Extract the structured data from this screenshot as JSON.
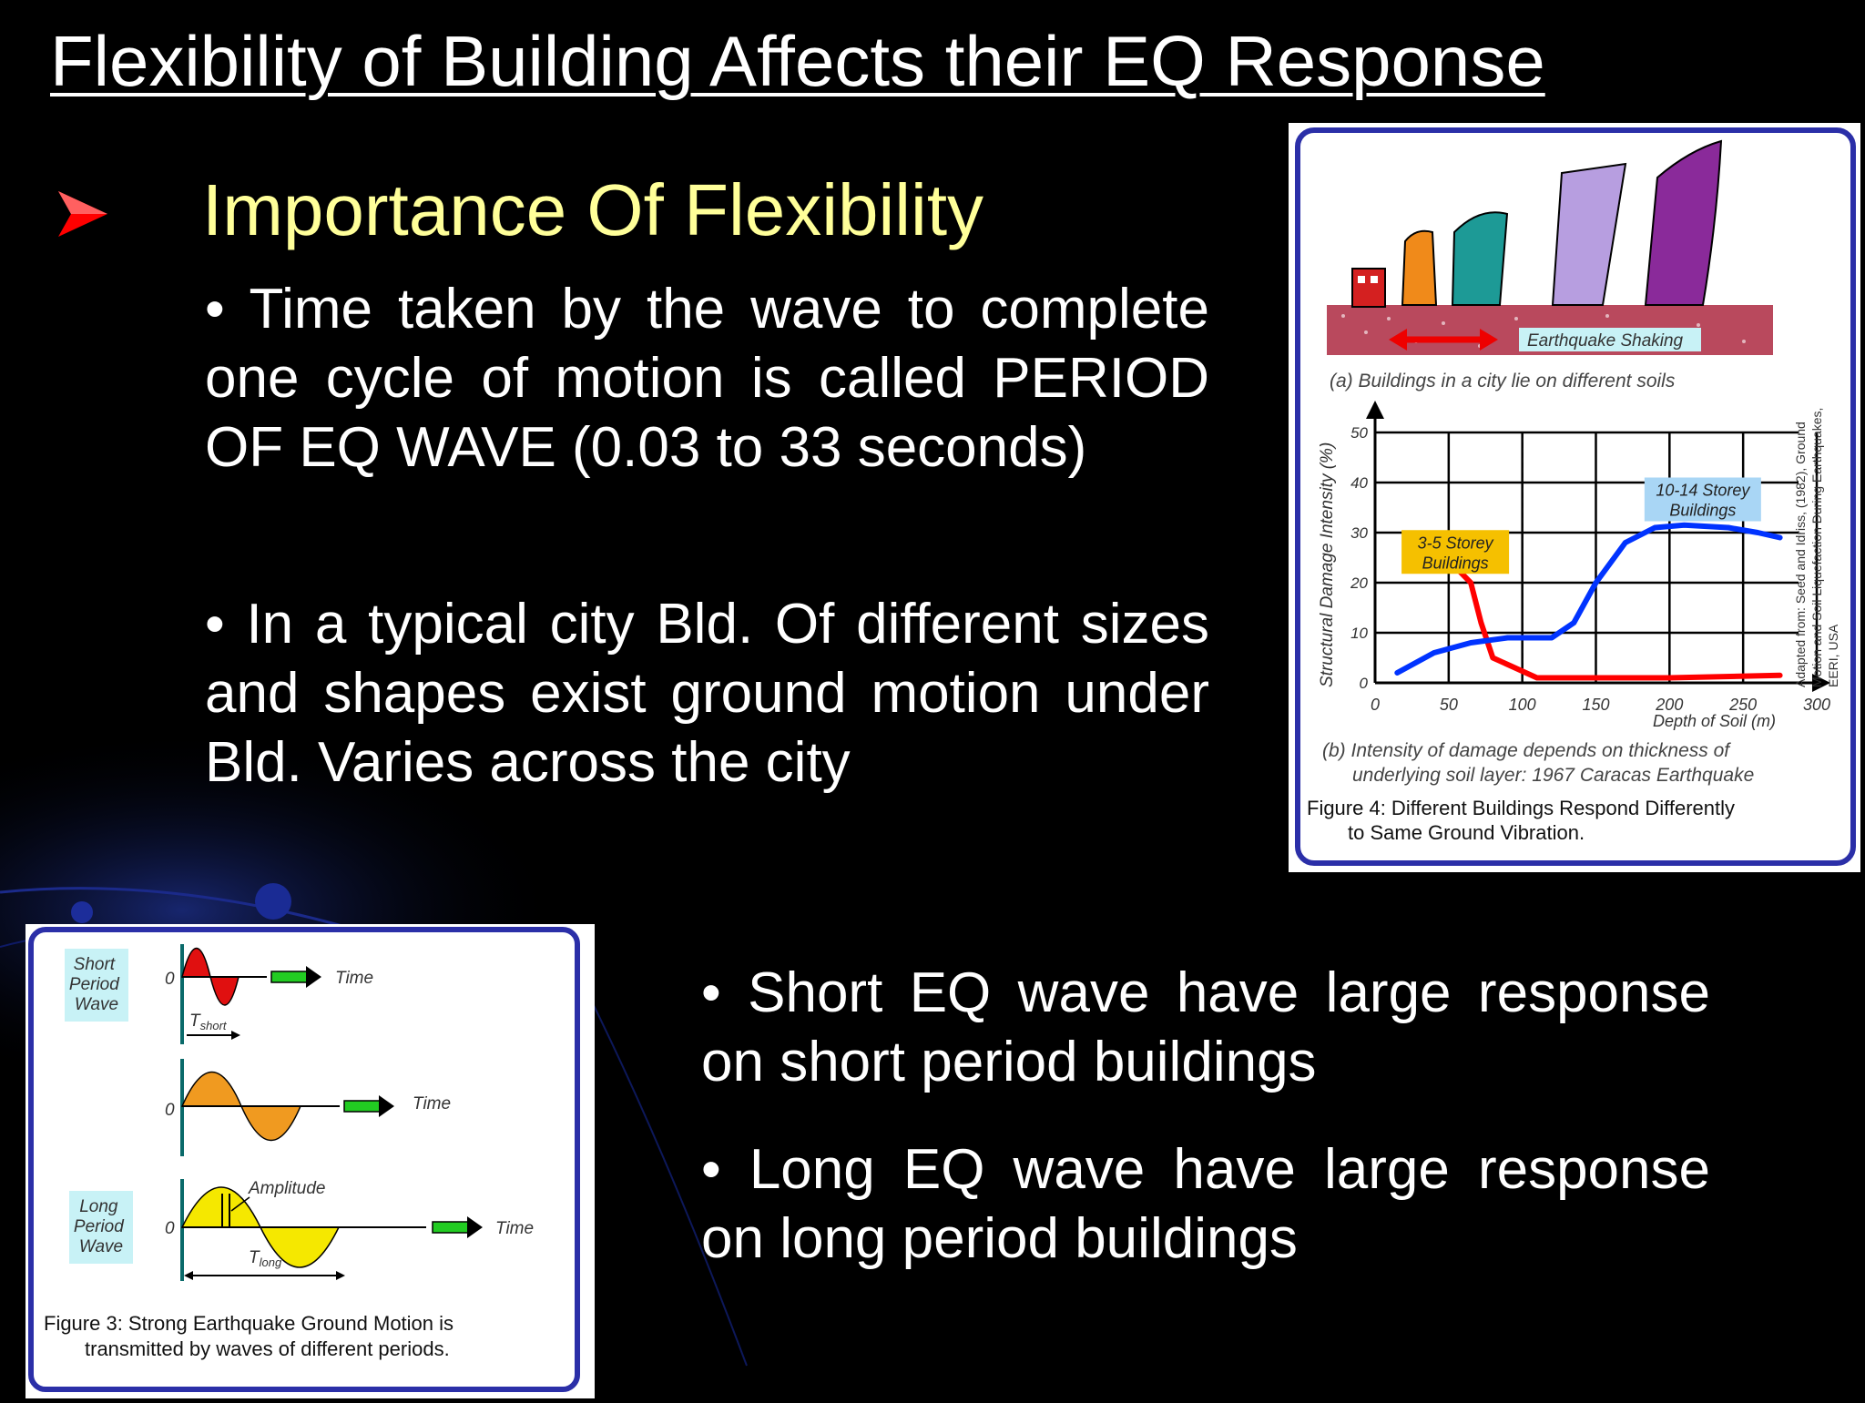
{
  "slide": {
    "title": "Flexibility of Building Affects their EQ Response",
    "heading": "Importance Of Flexibility",
    "bullets": [
      "• Time taken by the wave to complete one cycle of motion is called PERIOD OF EQ WAVE (0.03 to 33 seconds)",
      "• In a typical city Bld. Of different sizes and shapes exist ground motion under Bld. Varies across the city",
      "• Short EQ wave have large response on short period buildings",
      "• Long EQ wave have large response on long period buildings"
    ],
    "colors": {
      "background": "#000000",
      "heading": "#ffff99",
      "bullet_arrow": "#ff0000",
      "text": "#ffffff"
    }
  },
  "figure4": {
    "shaking_label": "Earthquake Shaking",
    "caption_a": "(a) Buildings in a city lie on different soils",
    "caption_b_line1": "(b) Intensity of damage depends on thickness of",
    "caption_b_line2": "underlying soil layer: 1967 Caracas Earthquake",
    "caption_line1": "Figure 4: Different Buildings Respond Differently",
    "caption_line2": "to Same Ground Vibration.",
    "source_line1": "Adapted from: Seed and Idriss, (1982), Ground",
    "source_line2": "Motion and Soil Liquefaction During Earthquakes,",
    "source_line3": "EERI, USA",
    "chart_data": {
      "type": "line",
      "xlabel": "Depth of Soil (m)",
      "ylabel": "Structural Damage Intensity (%)",
      "xlim": [
        0,
        300
      ],
      "ylim": [
        0,
        50
      ],
      "x_ticks": [
        "0",
        "50",
        "100",
        "150",
        "200",
        "250",
        "300"
      ],
      "y_ticks": [
        "0",
        "10",
        "20",
        "30",
        "40",
        "50"
      ],
      "series": [
        {
          "name": "3-5 Storey Buildings",
          "color": "#ff0000",
          "points": [
            [
              40,
              23
            ],
            [
              55,
              23
            ],
            [
              65,
              20
            ],
            [
              72,
              12
            ],
            [
              80,
              5
            ],
            [
              95,
              3
            ],
            [
              110,
              1
            ],
            [
              200,
              1
            ],
            [
              275,
              1.5
            ]
          ]
        },
        {
          "name": "10-14 Storey Buildings",
          "color": "#0033ff",
          "points": [
            [
              15,
              2
            ],
            [
              40,
              6
            ],
            [
              65,
              8
            ],
            [
              90,
              9
            ],
            [
              120,
              9
            ],
            [
              135,
              12
            ],
            [
              150,
              20
            ],
            [
              170,
              28
            ],
            [
              190,
              31
            ],
            [
              210,
              31.5
            ],
            [
              240,
              31
            ],
            [
              260,
              30
            ],
            [
              275,
              29
            ]
          ]
        }
      ]
    }
  },
  "figure3": {
    "short_label": [
      "Short",
      "Period",
      "Wave"
    ],
    "long_label": [
      "Long",
      "Period",
      "Wave"
    ],
    "zero": "0",
    "time": "Time",
    "amplitude": "Amplitude",
    "t_short": "T",
    "t_short_sub": "short",
    "t_long": "T",
    "t_long_sub": "long",
    "caption_line1": "Figure 3: Strong Earthquake Ground Motion is",
    "caption_line2": "transmitted by waves of different periods."
  }
}
